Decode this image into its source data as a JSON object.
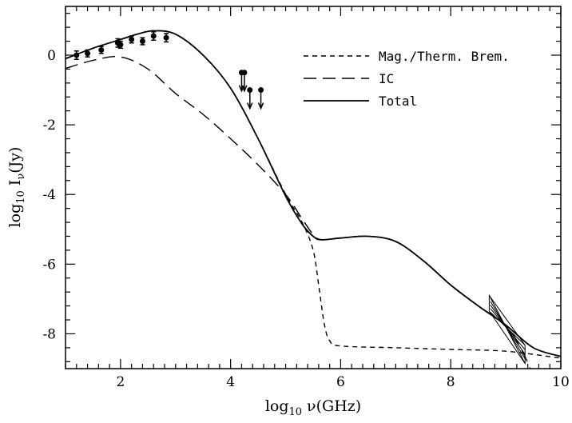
{
  "chart_data": {
    "type": "line",
    "title": "",
    "xlabel": "log",
    "xlabel_sub": "10",
    "xlabel_var": "ν(GHz)",
    "ylabel": "log",
    "ylabel_sub": "10",
    "ylabel_var_main": "I",
    "ylabel_var_sub": "ν",
    "ylabel_var_tail": "(Jy)",
    "xlim": [
      1,
      10
    ],
    "ylim": [
      -9,
      1.4
    ],
    "x_ticks": [
      2,
      4,
      6,
      8,
      10
    ],
    "x_tick_labels": [
      "2",
      "4",
      "6",
      "8",
      "10"
    ],
    "y_ticks": [
      0,
      -2,
      -4,
      -6,
      -8
    ],
    "y_tick_labels": [
      "0",
      "-2",
      "-4",
      "-6",
      "-8"
    ],
    "grid": false,
    "legend_position": "top-right",
    "series": [
      {
        "name": "Mag./Therm. Brem.",
        "style": "short-dash",
        "x": [
          1.0,
          1.5,
          2.0,
          2.3,
          2.6,
          3.0,
          3.5,
          4.0,
          4.5,
          5.0,
          5.3,
          5.5,
          5.6,
          5.7,
          5.8,
          6.0,
          7.0,
          8.0,
          9.0,
          10.0
        ],
        "y": [
          -0.1,
          0.2,
          0.45,
          0.6,
          0.7,
          0.6,
          0.0,
          -0.95,
          -2.4,
          -4.0,
          -4.8,
          -5.6,
          -6.6,
          -7.7,
          -8.2,
          -8.35,
          -8.4,
          -8.45,
          -8.5,
          -8.7
        ]
      },
      {
        "name": "IC",
        "style": "long-dash",
        "x": [
          1.0,
          1.5,
          2.0,
          2.5,
          3.0,
          3.5,
          4.0,
          4.5,
          5.0,
          5.3,
          5.5,
          5.65,
          6.0,
          6.5,
          7.0,
          7.5,
          8.0,
          8.5,
          9.0,
          9.3,
          9.5
        ],
        "y": [
          -0.38,
          -0.15,
          -0.05,
          -0.4,
          -1.1,
          -1.7,
          -2.4,
          -3.15,
          -4.0,
          -4.7,
          -5.15,
          -5.3,
          -5.25,
          -5.2,
          -5.35,
          -5.9,
          -6.6,
          -7.2,
          -7.75,
          -8.5,
          -9.2
        ]
      },
      {
        "name": "Total",
        "style": "solid",
        "x": [
          1.0,
          1.5,
          2.0,
          2.3,
          2.6,
          3.0,
          3.5,
          4.0,
          4.5,
          5.0,
          5.3,
          5.5,
          5.65,
          6.0,
          6.5,
          7.0,
          7.5,
          8.0,
          8.5,
          9.0,
          9.5,
          10.0
        ],
        "y": [
          -0.1,
          0.2,
          0.45,
          0.6,
          0.7,
          0.6,
          0.0,
          -0.95,
          -2.4,
          -4.05,
          -4.85,
          -5.2,
          -5.3,
          -5.25,
          -5.2,
          -5.35,
          -5.9,
          -6.6,
          -7.2,
          -7.75,
          -8.4,
          -8.65
        ]
      }
    ],
    "data_points": {
      "x": [
        1.2,
        1.4,
        1.65,
        1.95,
        2.0,
        2.2,
        2.4,
        2.6,
        2.83
      ],
      "y": [
        0.0,
        0.05,
        0.15,
        0.35,
        0.3,
        0.45,
        0.4,
        0.55,
        0.5
      ],
      "err": [
        0.12,
        0.1,
        0.1,
        0.12,
        0.1,
        0.1,
        0.1,
        0.12,
        0.12
      ]
    },
    "upper_limits": {
      "x": [
        4.2,
        4.25,
        4.35,
        4.55
      ],
      "y": [
        -0.5,
        -0.5,
        -1.0,
        -1.0
      ]
    },
    "bowtie": {
      "x_range": [
        8.7,
        9.35
      ],
      "pivot": [
        9.0,
        -7.8
      ],
      "slope_min": -1.5,
      "slope_max": -3.0
    }
  }
}
